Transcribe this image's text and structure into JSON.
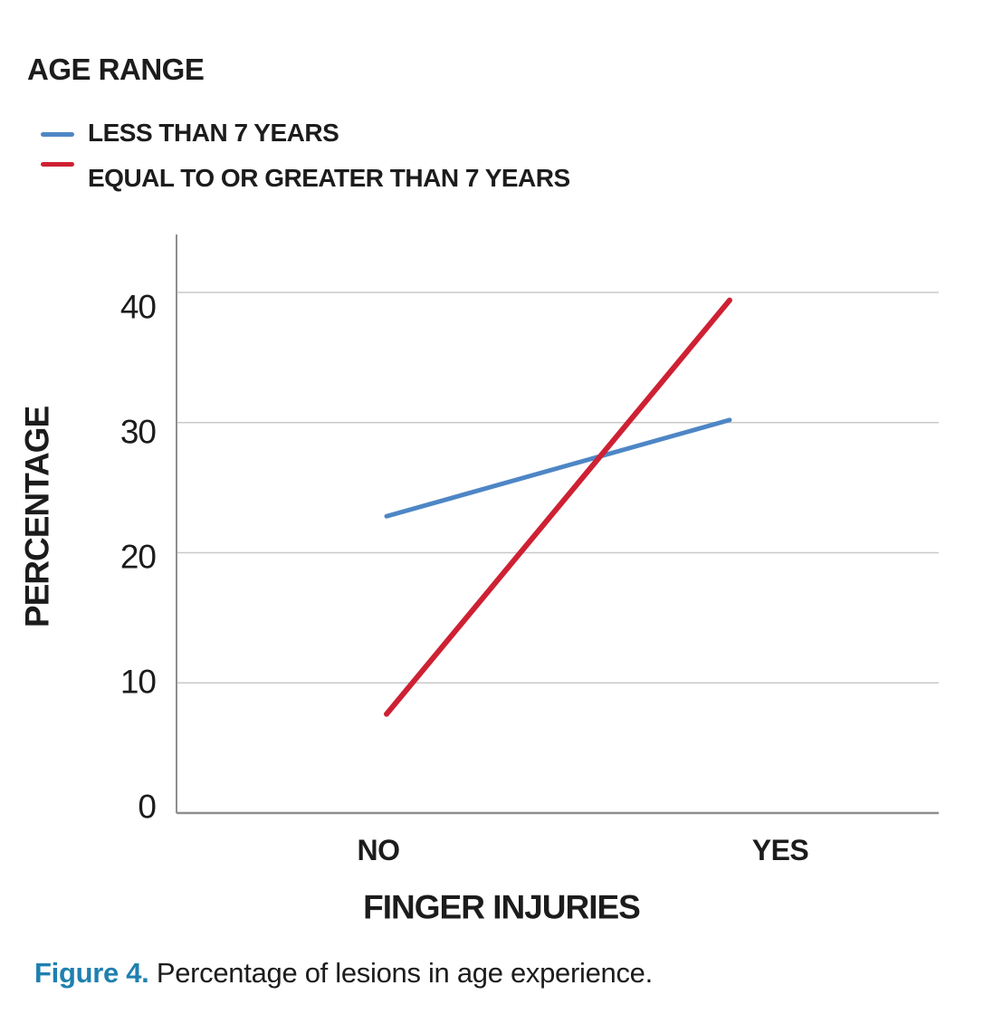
{
  "figure": {
    "legend_title": "AGE RANGE",
    "legend": [
      {
        "label": "LESS THAN 7 YEARS",
        "color": "#4E86C5"
      },
      {
        "label": "EQUAL TO OR GREATER THAN 7 YEARS",
        "color": "#CE2133"
      }
    ],
    "caption_label": "Figure 4.",
    "caption_text": "Percentage of lesions in age experience.",
    "caption_label_color": "#1F80B0"
  },
  "chart_data": {
    "type": "line",
    "categories": [
      "NO",
      "YES"
    ],
    "series": [
      {
        "name": "LESS THAN 7 YEARS",
        "color": "#4E86C5",
        "values": [
          22.8,
          30.2
        ]
      },
      {
        "name": "EQUAL TO OR GREATER THAN 7 YEARS",
        "color": "#CE2133",
        "values": [
          7.6,
          39.4
        ]
      }
    ],
    "xlabel": "FINGER INJURIES",
    "ylabel": "PERCENTAGE",
    "ylim": [
      0,
      44.5
    ],
    "yticks": [
      0,
      10,
      20,
      30,
      40
    ],
    "grid": true,
    "grid_color": "#C9C9C9",
    "axis_color": "#8F8F8F",
    "legend_position": "top-left",
    "text_color": "#1C1C1C"
  }
}
